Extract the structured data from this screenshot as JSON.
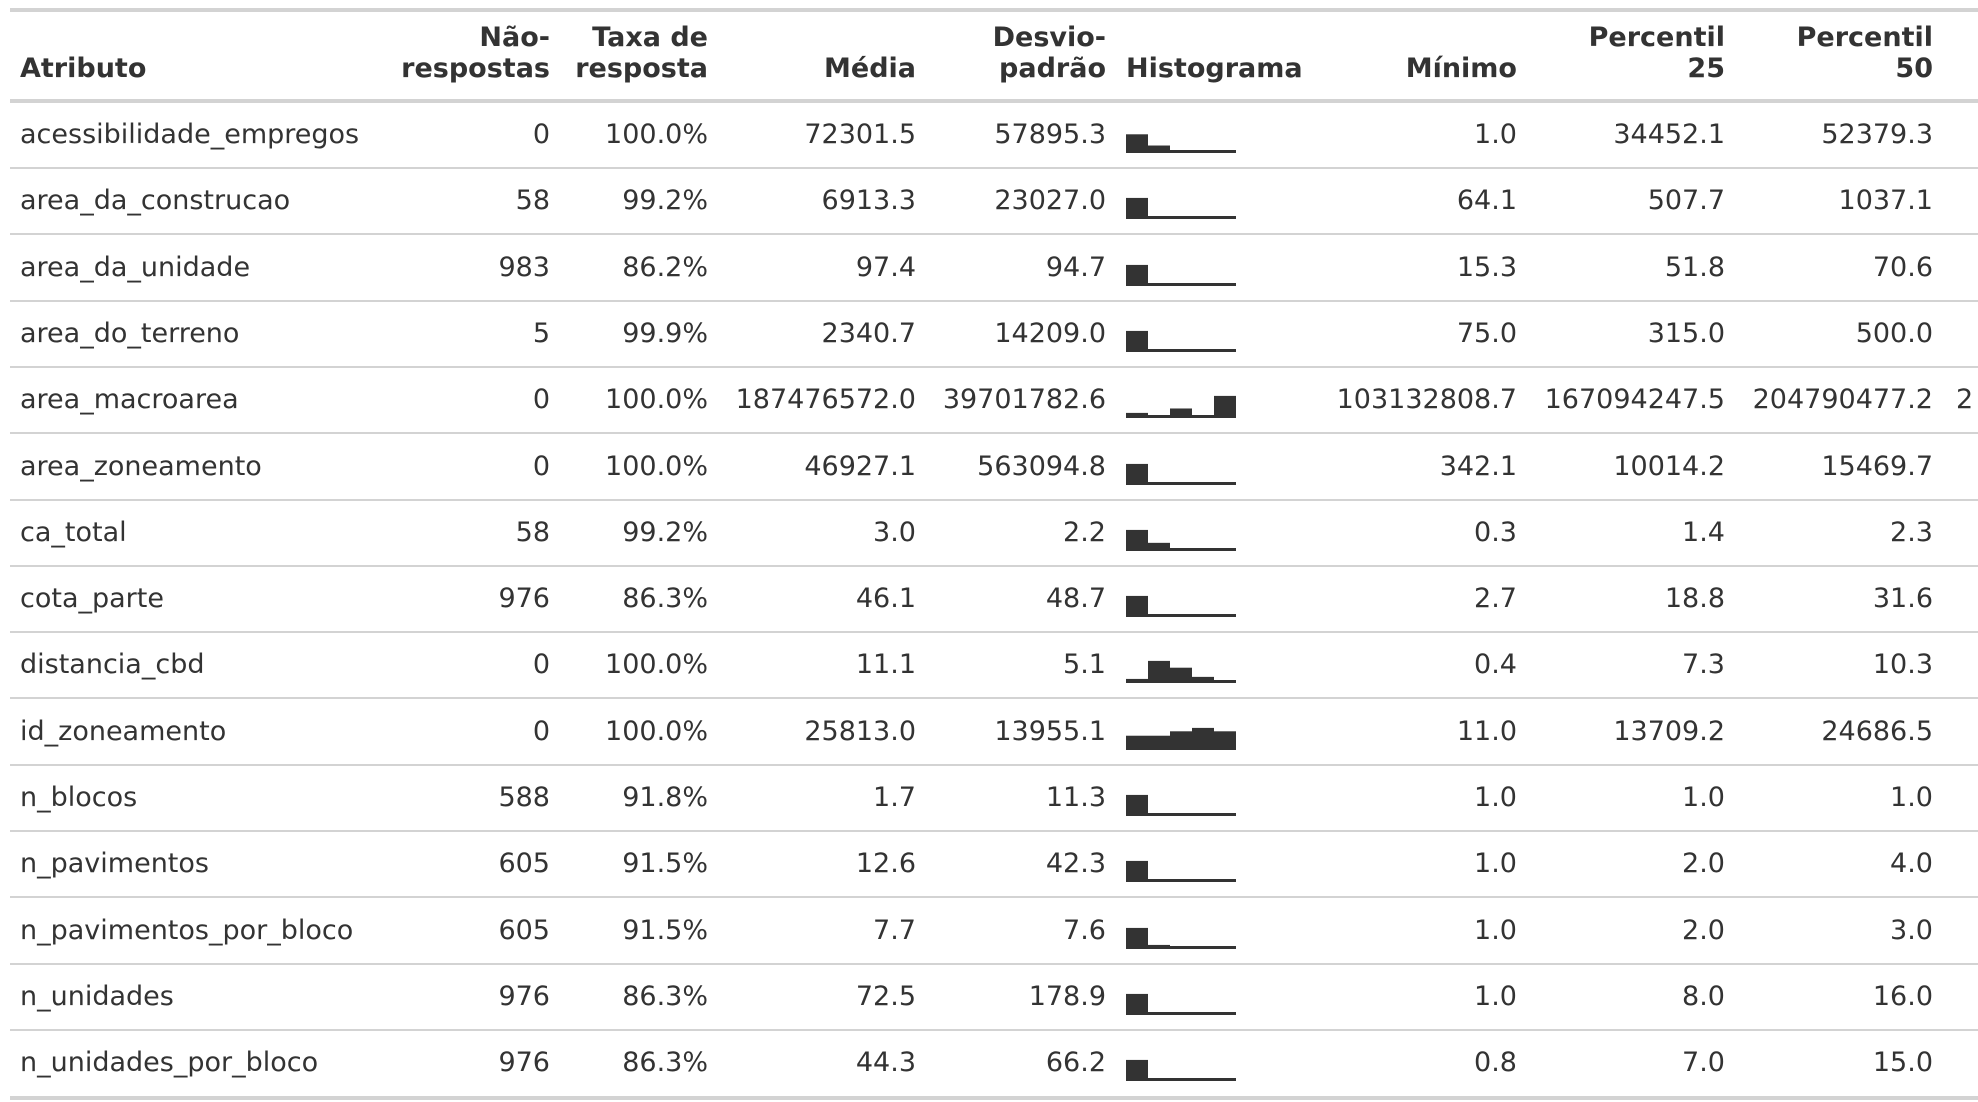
{
  "table": {
    "headers": {
      "atributo": "Atributo",
      "nao_respostas": "Não-\nrespostas",
      "taxa": "Taxa de\nresposta",
      "media": "Média",
      "desvio": "Desvio-\npadrão",
      "histograma": "Histograma",
      "minimo": "Mínimo",
      "p25": "Percentil\n25",
      "p50": "Percentil\n50"
    },
    "rows": [
      {
        "atributo": "acessibilidade_empregos",
        "nao_respostas": "0",
        "taxa": "100.0%",
        "media": "72301.5",
        "desvio": "57895.3",
        "minimo": "1.0",
        "p25": "34452.1",
        "p50": "52379.3",
        "extra": "",
        "hist": [
          0.55,
          0.22,
          0.03,
          0.03,
          0.03
        ]
      },
      {
        "atributo": "area_da_construcao",
        "nao_respostas": "58",
        "taxa": "99.2%",
        "media": "6913.3",
        "desvio": "23027.0",
        "minimo": "64.1",
        "p25": "507.7",
        "p50": "1037.1",
        "extra": "",
        "hist": [
          0.62,
          0.03,
          0.03,
          0.03,
          0.03
        ]
      },
      {
        "atributo": "area_da_unidade",
        "nao_respostas": "983",
        "taxa": "86.2%",
        "media": "97.4",
        "desvio": "94.7",
        "minimo": "15.3",
        "p25": "51.8",
        "p50": "70.6",
        "extra": "",
        "hist": [
          0.62,
          0.03,
          0.03,
          0.03,
          0.03
        ]
      },
      {
        "atributo": "area_do_terreno",
        "nao_respostas": "5",
        "taxa": "99.9%",
        "media": "2340.7",
        "desvio": "14209.0",
        "minimo": "75.0",
        "p25": "315.0",
        "p50": "500.0",
        "extra": "",
        "hist": [
          0.62,
          0.03,
          0.03,
          0.03,
          0.03
        ]
      },
      {
        "atributo": "area_macroarea",
        "nao_respostas": "0",
        "taxa": "100.0%",
        "media": "187476572.0",
        "desvio": "39701782.6",
        "minimo": "103132808.7",
        "p25": "167094247.5",
        "p50": "204790477.2",
        "extra": "2",
        "hist": [
          0.15,
          0.03,
          0.28,
          0.03,
          0.65
        ]
      },
      {
        "atributo": "area_zoneamento",
        "nao_respostas": "0",
        "taxa": "100.0%",
        "media": "46927.1",
        "desvio": "563094.8",
        "minimo": "342.1",
        "p25": "10014.2",
        "p50": "15469.7",
        "extra": "",
        "hist": [
          0.62,
          0.03,
          0.03,
          0.03,
          0.03
        ]
      },
      {
        "atributo": "ca_total",
        "nao_respostas": "58",
        "taxa": "99.2%",
        "media": "3.0",
        "desvio": "2.2",
        "minimo": "0.3",
        "p25": "1.4",
        "p50": "2.3",
        "extra": "",
        "hist": [
          0.62,
          0.24,
          0.03,
          0.03,
          0.03
        ]
      },
      {
        "atributo": "cota_parte",
        "nao_respostas": "976",
        "taxa": "86.3%",
        "media": "46.1",
        "desvio": "48.7",
        "minimo": "2.7",
        "p25": "18.8",
        "p50": "31.6",
        "extra": "",
        "hist": [
          0.62,
          0.03,
          0.03,
          0.03,
          0.03
        ]
      },
      {
        "atributo": "distancia_cbd",
        "nao_respostas": "0",
        "taxa": "100.0%",
        "media": "11.1",
        "desvio": "5.1",
        "minimo": "0.4",
        "p25": "7.3",
        "p50": "10.3",
        "extra": "",
        "hist": [
          0.12,
          0.65,
          0.45,
          0.18,
          0.06
        ]
      },
      {
        "atributo": "id_zoneamento",
        "nao_respostas": "0",
        "taxa": "100.0%",
        "media": "25813.0",
        "desvio": "13955.1",
        "minimo": "11.0",
        "p25": "13709.2",
        "p50": "24686.5",
        "extra": "",
        "hist": [
          0.42,
          0.42,
          0.55,
          0.65,
          0.55
        ]
      },
      {
        "atributo": "n_blocos",
        "nao_respostas": "588",
        "taxa": "91.8%",
        "media": "1.7",
        "desvio": "11.3",
        "minimo": "1.0",
        "p25": "1.0",
        "p50": "1.0",
        "extra": "",
        "hist": [
          0.62,
          0.03,
          0.03,
          0.03,
          0.03
        ]
      },
      {
        "atributo": "n_pavimentos",
        "nao_respostas": "605",
        "taxa": "91.5%",
        "media": "12.6",
        "desvio": "42.3",
        "minimo": "1.0",
        "p25": "2.0",
        "p50": "4.0",
        "extra": "",
        "hist": [
          0.62,
          0.03,
          0.03,
          0.03,
          0.03
        ]
      },
      {
        "atributo": "n_pavimentos_por_bloco",
        "nao_respostas": "605",
        "taxa": "91.5%",
        "media": "7.7",
        "desvio": "7.6",
        "minimo": "1.0",
        "p25": "2.0",
        "p50": "3.0",
        "extra": "",
        "hist": [
          0.62,
          0.12,
          0.03,
          0.03,
          0.03
        ]
      },
      {
        "atributo": "n_unidades",
        "nao_respostas": "976",
        "taxa": "86.3%",
        "media": "72.5",
        "desvio": "178.9",
        "minimo": "1.0",
        "p25": "8.0",
        "p50": "16.0",
        "extra": "",
        "hist": [
          0.62,
          0.03,
          0.03,
          0.03,
          0.03
        ]
      },
      {
        "atributo": "n_unidades_por_bloco",
        "nao_respostas": "976",
        "taxa": "86.3%",
        "media": "44.3",
        "desvio": "66.2",
        "minimo": "0.8",
        "p25": "7.0",
        "p50": "15.0",
        "extra": "",
        "hist": [
          0.62,
          0.03,
          0.03,
          0.03,
          0.03
        ]
      }
    ]
  },
  "colors": {
    "text": "#333333",
    "rule": "#d3d3d3",
    "bar": "#333333"
  }
}
